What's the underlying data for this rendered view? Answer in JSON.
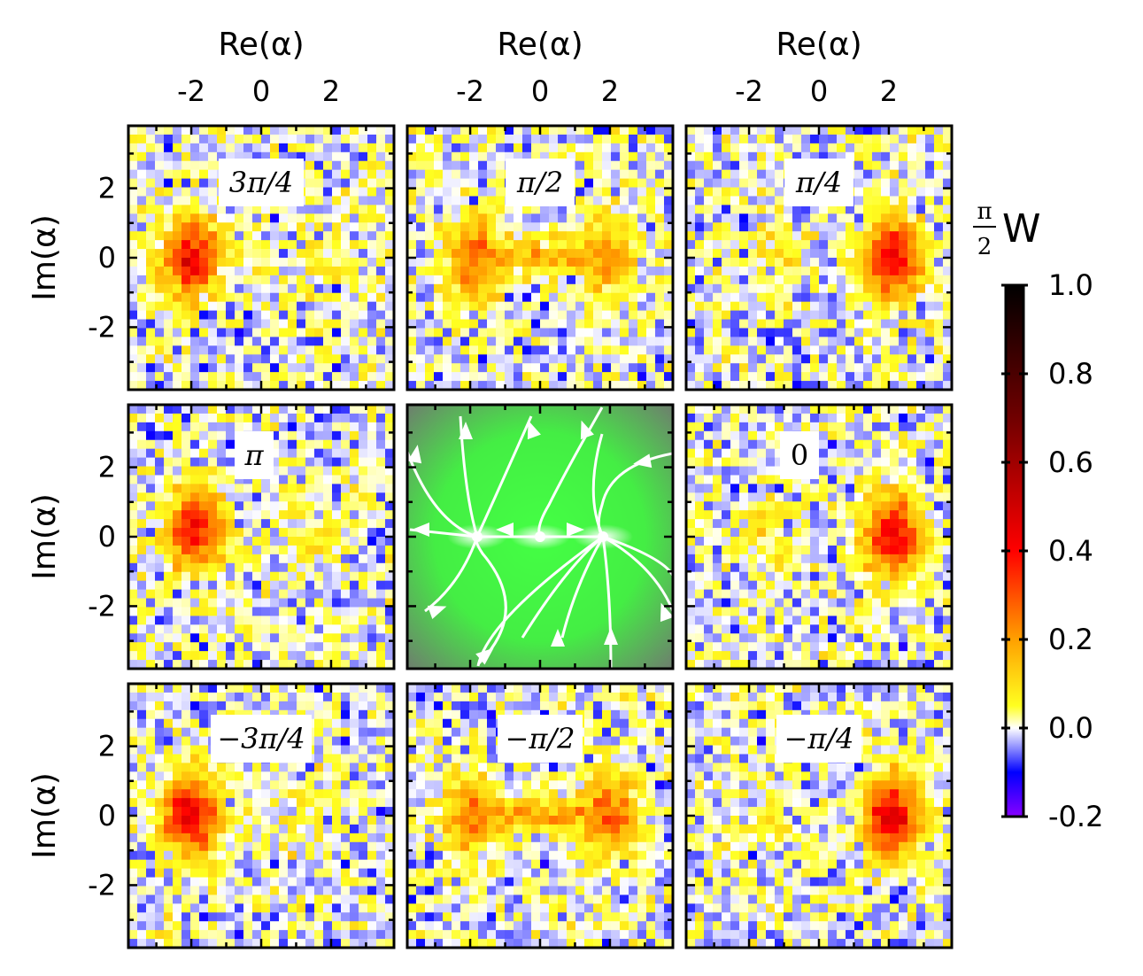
{
  "chart_data": {
    "type": "heatmap",
    "layout": "3x3 grid of Wigner function panels, center panel is a flow diagram",
    "xlabel": "Re(α)",
    "ylabel": "Im(α)",
    "xticks": [
      -2,
      0,
      2
    ],
    "yticks": [
      2,
      0,
      -2
    ],
    "xlim": [
      -3.8,
      3.8
    ],
    "ylim": [
      -3.8,
      3.8
    ],
    "colorbar": {
      "label_fraction_num": "π",
      "label_fraction_den": "2",
      "label_symbol": "W",
      "range": [
        -0.2,
        1.0
      ],
      "ticks": [
        "1.0",
        "0.8",
        "0.6",
        "0.4",
        "0.2",
        "0.0",
        "-0.2"
      ],
      "stops": [
        {
          "value": -0.2,
          "color": "#8800ff"
        },
        {
          "value": -0.1,
          "color": "#0000ff"
        },
        {
          "value": 0.0,
          "color": "#ffffff"
        },
        {
          "value": 0.05,
          "color": "#ffff20"
        },
        {
          "value": 0.2,
          "color": "#ffa000"
        },
        {
          "value": 0.4,
          "color": "#ff0000"
        },
        {
          "value": 0.7,
          "color": "#700000"
        },
        {
          "value": 1.0,
          "color": "#000000"
        }
      ]
    },
    "panels": [
      {
        "label": "3π/4",
        "blobs": [
          {
            "x": -2.0,
            "y": 0.0,
            "amp": 0.42
          },
          {
            "x": 1.5,
            "y": 0.0,
            "amp": 0.06
          }
        ]
      },
      {
        "label": "π/2",
        "blobs": [
          {
            "x": -1.9,
            "y": 0.0,
            "amp": 0.28
          },
          {
            "x": 1.9,
            "y": 0.0,
            "amp": 0.22
          }
        ],
        "bridge": 0.2
      },
      {
        "label": "π/4",
        "blobs": [
          {
            "x": 2.1,
            "y": 0.0,
            "amp": 0.42
          },
          {
            "x": -1.2,
            "y": 0.0,
            "amp": 0.06
          }
        ]
      },
      {
        "label": "π",
        "blobs": [
          {
            "x": -1.9,
            "y": 0.2,
            "amp": 0.4
          },
          {
            "x": 1.5,
            "y": 0.0,
            "amp": 0.06
          }
        ]
      },
      {
        "label": "",
        "type": "flow",
        "fixed_points": [
          {
            "x": -1.8,
            "y": 0.0
          },
          {
            "x": 0.0,
            "y": 0.0
          },
          {
            "x": 1.8,
            "y": 0.0
          }
        ]
      },
      {
        "label": "0",
        "blobs": [
          {
            "x": 2.1,
            "y": 0.0,
            "amp": 0.42
          },
          {
            "x": -1.5,
            "y": 0.1,
            "amp": 0.07
          }
        ]
      },
      {
        "label": "−3π/4",
        "blobs": [
          {
            "x": -2.0,
            "y": 0.0,
            "amp": 0.45
          },
          {
            "x": 1.2,
            "y": 0.0,
            "amp": 0.05
          }
        ]
      },
      {
        "label": "−π/2",
        "blobs": [
          {
            "x": -1.9,
            "y": 0.0,
            "amp": 0.25
          },
          {
            "x": 2.0,
            "y": 0.0,
            "amp": 0.3
          }
        ],
        "bridge": 0.2
      },
      {
        "label": "−π/4",
        "blobs": [
          {
            "x": 2.1,
            "y": 0.0,
            "amp": 0.45
          },
          {
            "x": -1.5,
            "y": 0.0,
            "amp": 0.06
          }
        ]
      }
    ]
  }
}
